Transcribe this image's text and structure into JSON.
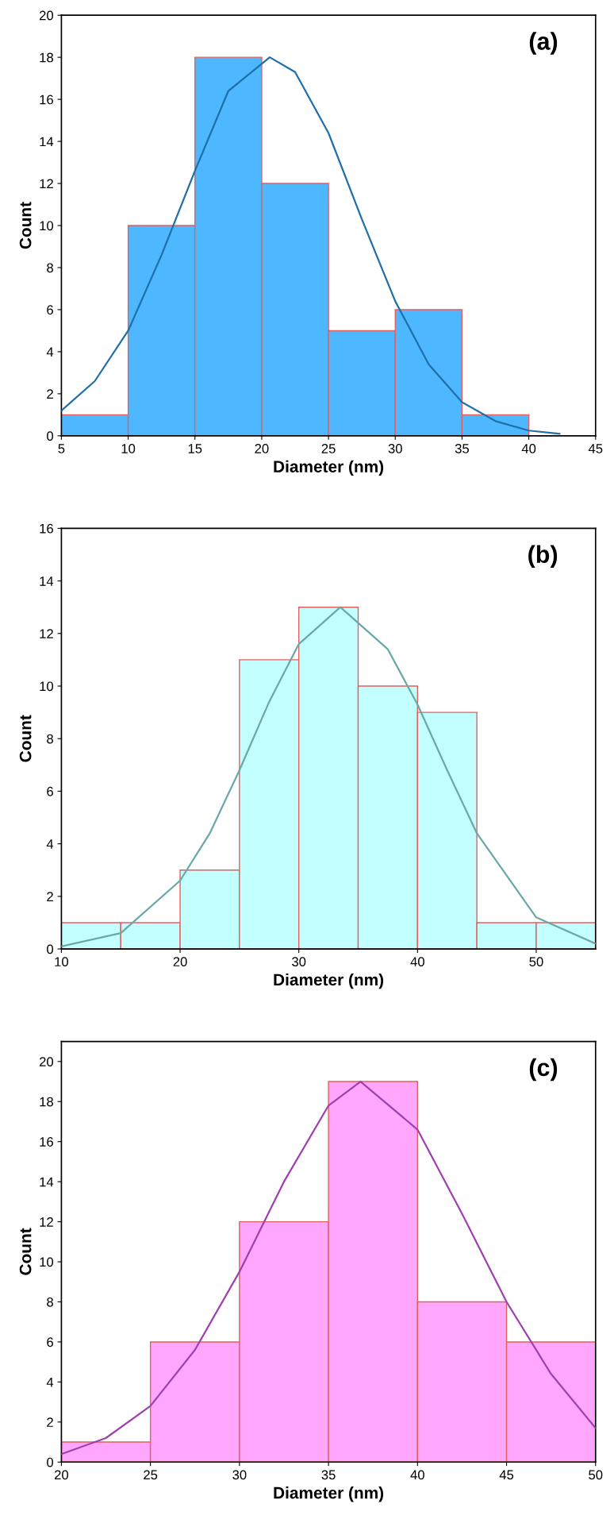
{
  "chart_data": [
    {
      "type": "histogram",
      "xlabel": "Diameter (nm)",
      "ylabel": "Count",
      "annotations": [
        "(a)"
      ],
      "bins": [
        5,
        10,
        15,
        20,
        25,
        30,
        35,
        40
      ],
      "values": [
        1,
        10,
        18,
        12,
        5,
        6,
        1
      ],
      "color": "#4db8ff",
      "xlim": [
        5,
        45
      ],
      "xticks": [
        5,
        10,
        15,
        20,
        25,
        30,
        35,
        40,
        45
      ],
      "ylim": [
        0,
        20
      ],
      "yticks": [
        0,
        2,
        4,
        6,
        8,
        10,
        12,
        14,
        16,
        18,
        20
      ],
      "grid": false,
      "series": [
        {
          "type": "line",
          "color": "#1f6fa8",
          "x": [
            5,
            7.5,
            10,
            12.5,
            15,
            17.5,
            20.6,
            22.5,
            25,
            27.5,
            30,
            32.5,
            35,
            37.5,
            40,
            42.3
          ],
          "values": [
            1.2,
            2.6,
            5.0,
            8.6,
            12.6,
            16.4,
            18,
            17.3,
            14.4,
            10.3,
            6.4,
            3.4,
            1.6,
            0.7,
            0.25,
            0.1
          ]
        }
      ]
    },
    {
      "type": "histogram",
      "xlabel": "Diameter (nm)",
      "ylabel": "Count",
      "annotations": [
        "(b)"
      ],
      "bins": [
        10,
        15,
        20,
        25,
        30,
        35,
        40,
        45,
        50,
        55
      ],
      "values": [
        1,
        1,
        3,
        11,
        13,
        10,
        9,
        1,
        1
      ],
      "color": "#c4ffff",
      "xlim": [
        10,
        55
      ],
      "xticks": [
        10,
        20,
        30,
        40,
        50
      ],
      "ylim": [
        0,
        16
      ],
      "yticks": [
        0,
        2,
        4,
        6,
        8,
        10,
        12,
        14,
        16
      ],
      "grid": false,
      "series": [
        {
          "type": "line",
          "color": "#6aa8a8",
          "x": [
            10,
            15,
            20,
            22.5,
            25,
            27.5,
            30,
            33.5,
            37.5,
            40,
            42.5,
            45,
            50,
            55
          ],
          "values": [
            0.1,
            0.6,
            2.6,
            4.4,
            6.8,
            9.4,
            11.6,
            13,
            11.4,
            9.3,
            6.8,
            4.4,
            1.2,
            0.2
          ]
        }
      ]
    },
    {
      "type": "histogram",
      "xlabel": "Diameter (nm)",
      "ylabel": "Count",
      "annotations": [
        "(c)"
      ],
      "bins": [
        20,
        25,
        30,
        35,
        40,
        45,
        50
      ],
      "values": [
        1,
        6,
        12,
        19,
        8,
        6
      ],
      "color": "#ffa6ff",
      "xlim": [
        20,
        50
      ],
      "xticks": [
        20,
        25,
        30,
        35,
        40,
        45,
        50
      ],
      "ylim": [
        0,
        21
      ],
      "yticks": [
        0,
        2,
        4,
        6,
        8,
        10,
        12,
        14,
        16,
        18,
        20
      ],
      "grid": false,
      "series": [
        {
          "type": "line",
          "color": "#a040b0",
          "x": [
            20,
            22.5,
            25,
            27.5,
            30,
            32.5,
            35,
            36.8,
            40,
            42.5,
            45,
            47.5,
            50
          ],
          "values": [
            0.4,
            1.2,
            2.8,
            5.6,
            9.5,
            14,
            17.8,
            19,
            16.6,
            12.4,
            8,
            4.4,
            1.7
          ]
        }
      ]
    }
  ]
}
